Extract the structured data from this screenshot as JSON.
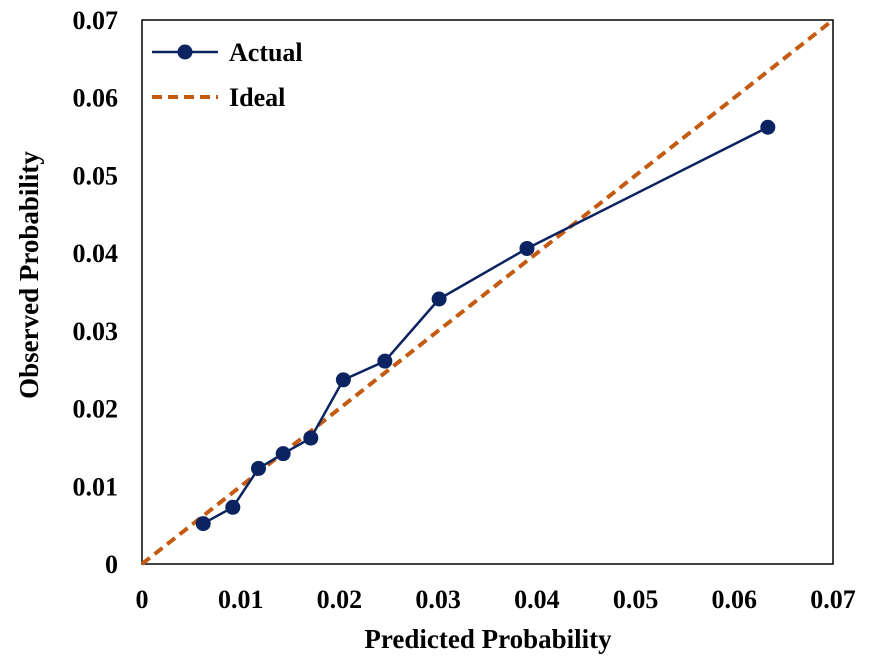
{
  "chart_data": {
    "type": "line",
    "xlabel": "Predicted Probability",
    "ylabel": "Observed Probability",
    "xlim": [
      0,
      0.07
    ],
    "ylim": [
      0,
      0.07
    ],
    "x_ticks": [
      "0",
      "0.01",
      "0.02",
      "0.03",
      "0.04",
      "0.05",
      "0.06",
      "0.07"
    ],
    "y_ticks": [
      "0",
      "0.01",
      "0.02",
      "0.03",
      "0.04",
      "0.05",
      "0.06",
      "0.07"
    ],
    "grid": false,
    "legend_position": "top-left",
    "series": [
      {
        "name": "Actual",
        "color": "#0b2461",
        "style": "solid-with-markers",
        "x": [
          0.0062,
          0.0092,
          0.0118,
          0.0143,
          0.0171,
          0.0204,
          0.0246,
          0.0301,
          0.039,
          0.0634
        ],
        "y": [
          0.0052,
          0.0073,
          0.0123,
          0.0142,
          0.0162,
          0.0237,
          0.0261,
          0.0341,
          0.0406,
          0.0562
        ]
      },
      {
        "name": "Ideal",
        "color": "#c55a11",
        "style": "dashed",
        "x": [
          0,
          0.07
        ],
        "y": [
          0,
          0.07
        ]
      }
    ]
  }
}
